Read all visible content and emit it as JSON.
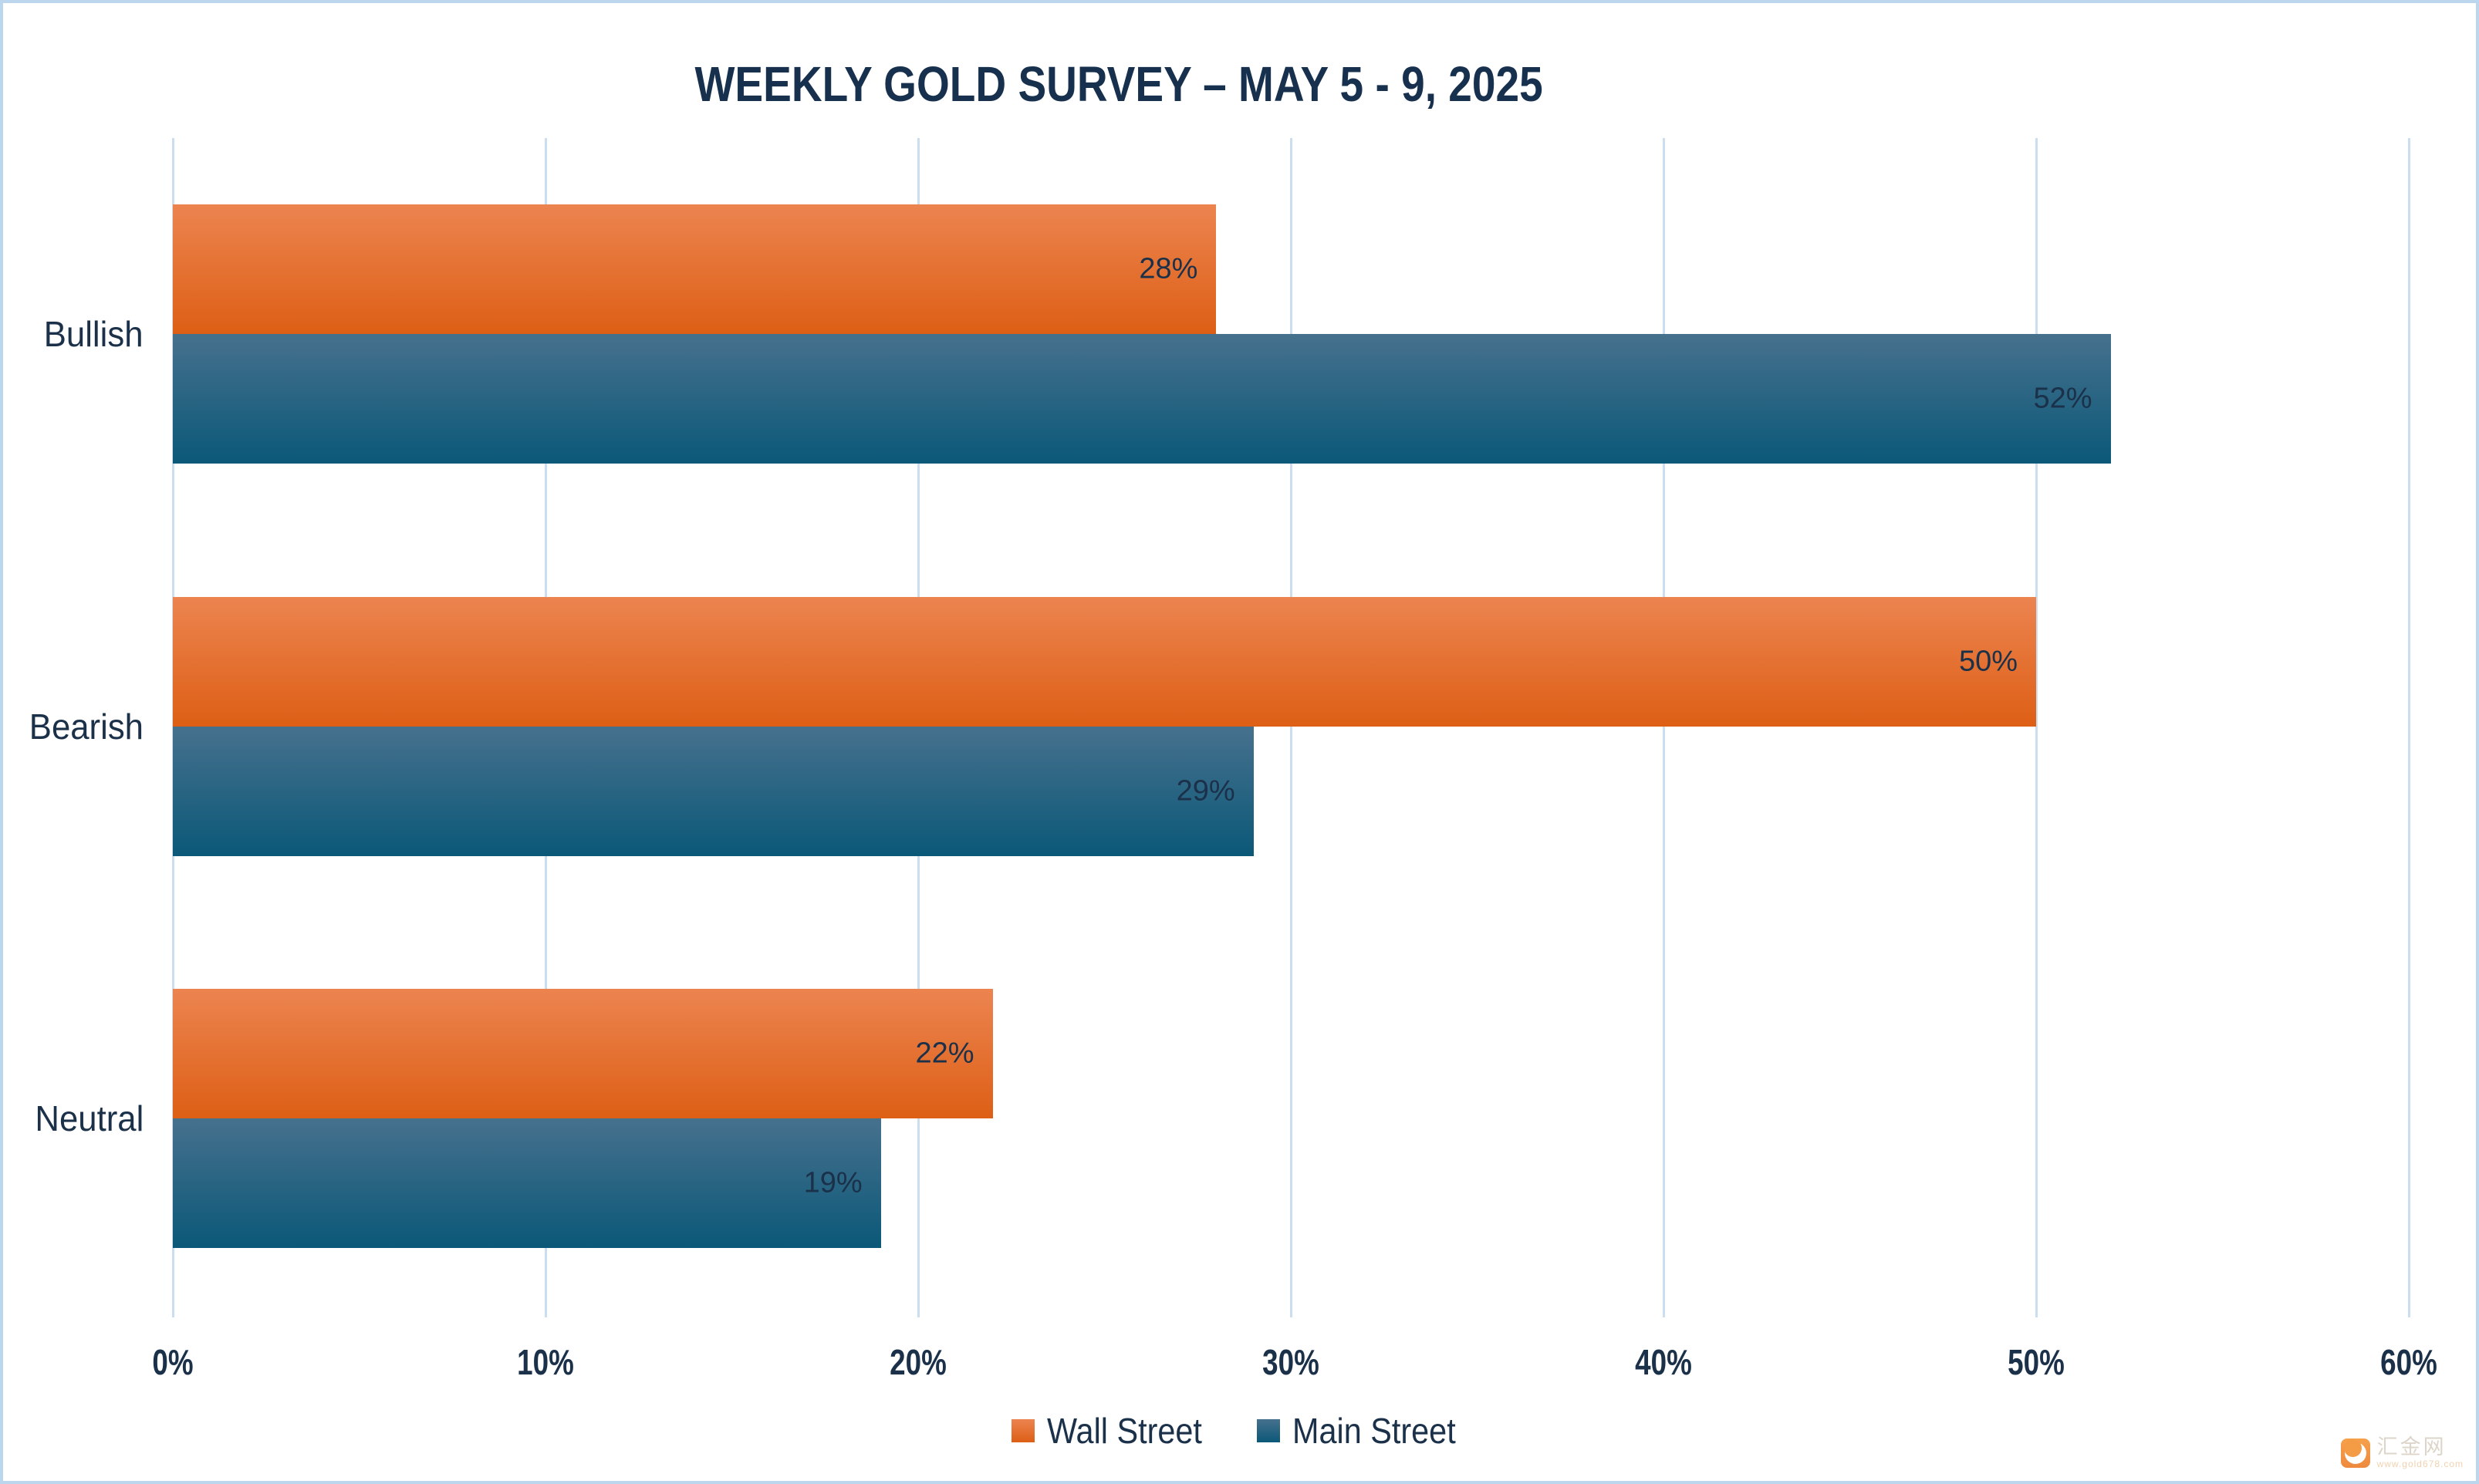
{
  "chart_data": {
    "type": "bar",
    "orientation": "horizontal",
    "title": "WEEKLY GOLD SURVEY – MAY 5 - 9, 2025",
    "categories": [
      "Bullish",
      "Bearish",
      "Neutral"
    ],
    "series": [
      {
        "name": "Wall Street",
        "values": [
          28,
          50,
          22
        ],
        "labels": [
          "28%",
          "50%",
          "22%"
        ],
        "color_top": "#ec8450",
        "color_bottom": "#dd5f15"
      },
      {
        "name": "Main Street",
        "values": [
          52,
          29,
          19
        ],
        "labels": [
          "52%",
          "29%",
          "19%"
        ],
        "color_top": "#46718d",
        "color_bottom": "#0b5878"
      }
    ],
    "xlim": [
      0,
      60
    ],
    "xticks": [
      0,
      10,
      20,
      30,
      40,
      50,
      60
    ],
    "xtick_labels": [
      "0%",
      "10%",
      "20%",
      "30%",
      "40%",
      "50%",
      "60%"
    ],
    "grid": "vertical-gridlines-on",
    "legend_position": "bottom-center"
  },
  "colors": {
    "text_navy": "#1b3049",
    "title_navy": "#16304e",
    "gridline": "#cbdeef",
    "canvas_border": "#bcd6ee",
    "background": "#ffffff"
  },
  "watermark": {
    "site_name": "汇金网",
    "site_url": "www.gold678.com"
  }
}
